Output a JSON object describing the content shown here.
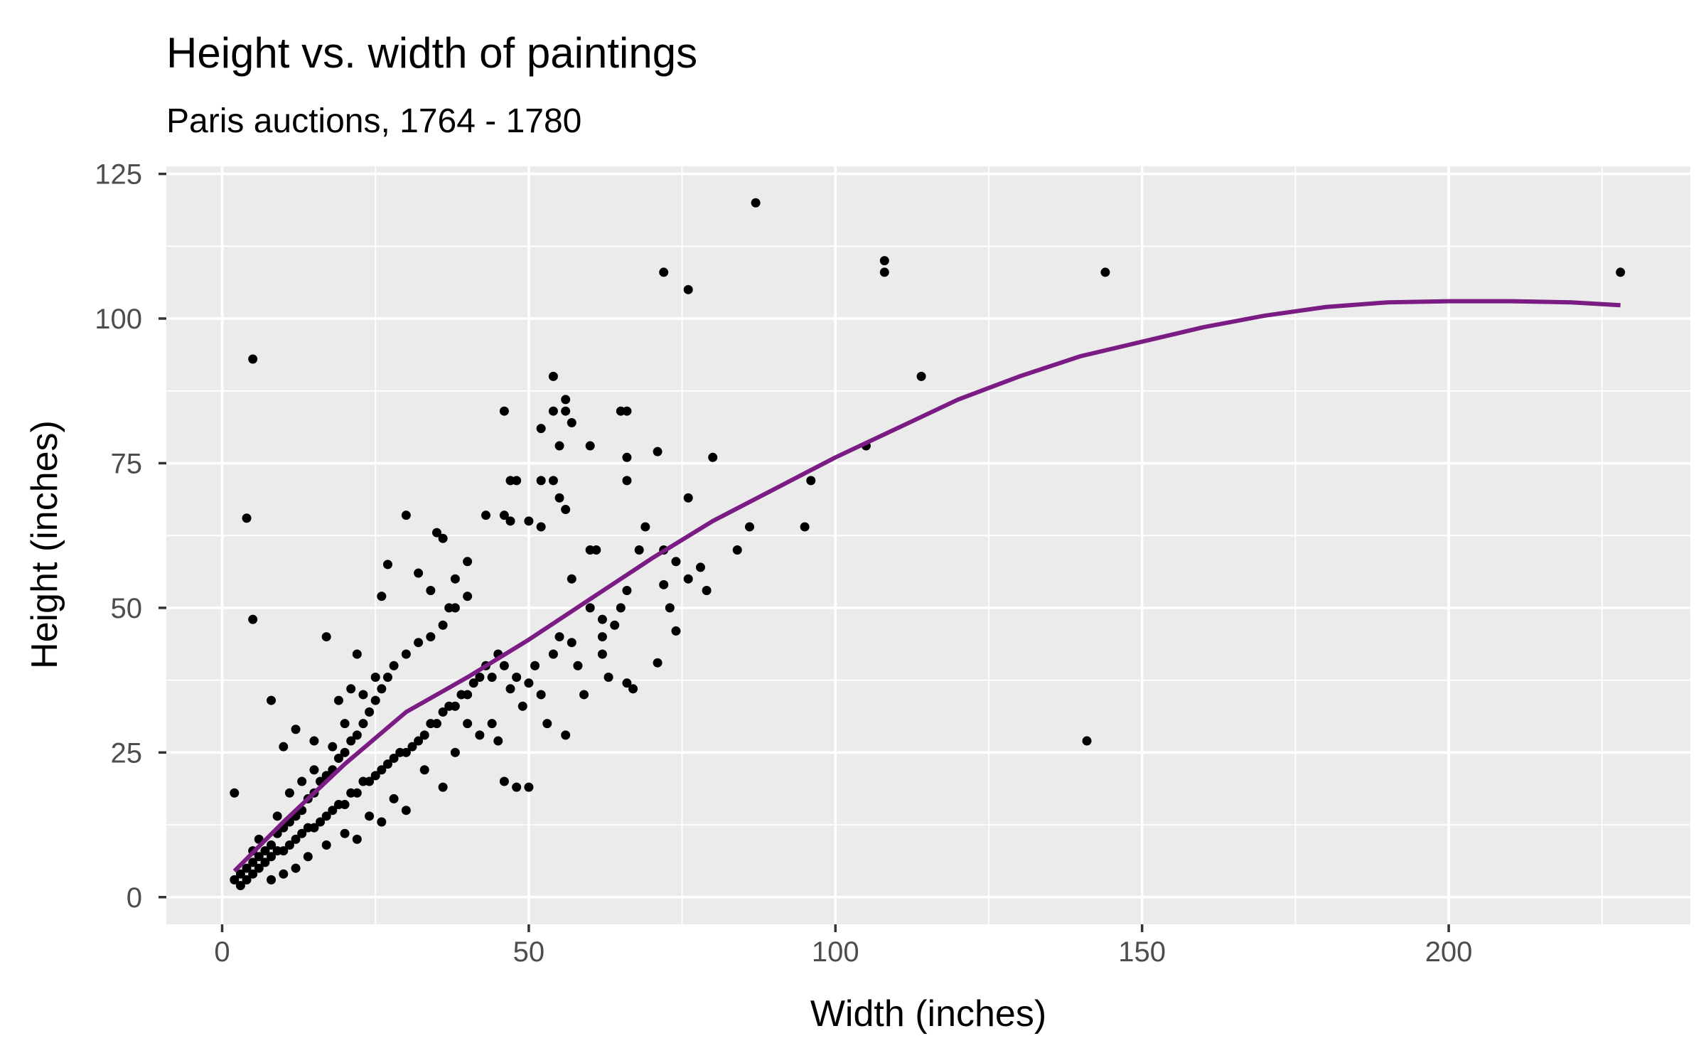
{
  "chart_data": {
    "type": "scatter",
    "title": "Height vs. width of paintings",
    "subtitle": "Paris auctions, 1764 - 1780",
    "x_label": "Width (inches)",
    "y_label": "Height (inches)",
    "xlim": [
      -9.1,
      239.4
    ],
    "ylim": [
      -4.7,
      126.3
    ],
    "xticks": [
      0,
      50,
      100,
      150,
      200
    ],
    "yticks": [
      0,
      25,
      50,
      75,
      100,
      125
    ],
    "grid": true,
    "background": "#ebebeb",
    "series": [
      {
        "type": "scatter",
        "color": "#000000",
        "x": [
          87,
          72,
          76,
          108,
          108,
          144,
          228,
          5,
          114,
          141,
          105,
          96,
          95,
          4,
          5,
          8,
          2,
          17,
          84,
          86,
          80,
          76,
          71,
          66,
          65,
          66,
          66,
          54,
          56,
          56,
          57,
          46,
          52,
          54,
          55,
          60,
          30,
          27,
          43,
          46,
          47,
          47,
          48,
          52,
          54,
          55,
          56,
          52,
          50,
          61,
          60,
          57,
          66,
          68,
          69,
          72,
          74,
          76,
          78,
          79,
          72,
          73,
          74,
          71,
          66,
          67,
          65,
          62,
          59,
          56,
          63,
          62,
          50,
          48,
          46,
          45,
          40,
          35,
          36,
          38,
          40,
          37,
          26,
          32,
          34,
          22,
          2,
          3,
          3,
          4,
          4,
          5,
          5,
          6,
          6,
          7,
          7,
          8,
          8,
          9,
          9,
          10,
          10,
          11,
          11,
          12,
          12,
          13,
          13,
          14,
          14,
          15,
          15,
          16,
          16,
          17,
          17,
          18,
          18,
          19,
          19,
          20,
          20,
          21,
          21,
          22,
          22,
          23,
          23,
          24,
          24,
          25,
          25,
          26,
          26,
          27,
          27,
          28,
          28,
          29,
          30,
          30,
          31,
          32,
          32,
          33,
          34,
          34,
          35,
          36,
          36,
          37,
          38,
          38,
          39,
          40,
          40,
          41,
          42,
          43,
          44,
          45,
          46,
          47,
          48,
          49,
          50,
          51,
          52,
          53,
          54,
          55,
          57,
          58,
          60,
          62,
          64,
          14,
          17,
          20,
          24,
          28,
          30,
          33,
          38,
          42,
          44,
          36,
          26,
          22,
          12,
          10,
          8,
          6,
          5,
          9,
          11,
          13,
          15,
          18,
          20,
          23,
          25,
          12,
          10,
          15,
          19,
          21
        ],
        "values": [
          120,
          108,
          105,
          110,
          108,
          108,
          108,
          93,
          90,
          27,
          78,
          72,
          64,
          65.5,
          48,
          34,
          18,
          45,
          60,
          64,
          76,
          69,
          77,
          84,
          84,
          76,
          72,
          90,
          86,
          84,
          82,
          84,
          81,
          84,
          78,
          78,
          66,
          57.5,
          66,
          66,
          65,
          72,
          72,
          72,
          72,
          69,
          67,
          64,
          65,
          60,
          60,
          55,
          53,
          60,
          64,
          60,
          58,
          55,
          57,
          53,
          54,
          50,
          46,
          40.5,
          37,
          36,
          50,
          45,
          35,
          28,
          38,
          42,
          19,
          19,
          20,
          27,
          30,
          63,
          62,
          55,
          58,
          50,
          52,
          56,
          53,
          42,
          3,
          2,
          4,
          3,
          5,
          4,
          6,
          5,
          7,
          6,
          8,
          7,
          9,
          8,
          11,
          8,
          12,
          9,
          13,
          10,
          14,
          11,
          15,
          12,
          17,
          12,
          18,
          13,
          20,
          14,
          21,
          15,
          22,
          16,
          24,
          16,
          25,
          18,
          27,
          18,
          28,
          20,
          30,
          20,
          32,
          21,
          34,
          22,
          36,
          23,
          38,
          24,
          40,
          25,
          25,
          42,
          26,
          27,
          44,
          28,
          30,
          45,
          30,
          32,
          47,
          33,
          33,
          50,
          35,
          35,
          52,
          37,
          38,
          40,
          38,
          42,
          40,
          36,
          38,
          33,
          37,
          40,
          35,
          30,
          42,
          45,
          44,
          40,
          50,
          48,
          47,
          7,
          9,
          11,
          14,
          17,
          15,
          22,
          25,
          28,
          30,
          19,
          13,
          10,
          5,
          4,
          3,
          10,
          8,
          14,
          18,
          20,
          22,
          26,
          30,
          35,
          38,
          29,
          26,
          27,
          34,
          36
        ]
      },
      {
        "type": "line",
        "color": "#7b1b84",
        "x": [
          2,
          10,
          20,
          30,
          40,
          50,
          60,
          70,
          80,
          90,
          100,
          110,
          120,
          130,
          140,
          150,
          160,
          170,
          180,
          190,
          200,
          210,
          220,
          228
        ],
        "values": [
          4.5,
          13,
          23,
          32,
          38,
          44.5,
          51.5,
          58.5,
          65,
          70.5,
          76,
          81,
          86,
          90,
          93.5,
          96,
          98.5,
          100.5,
          102,
          102.8,
          103,
          103,
          102.8,
          102.3
        ]
      }
    ]
  }
}
